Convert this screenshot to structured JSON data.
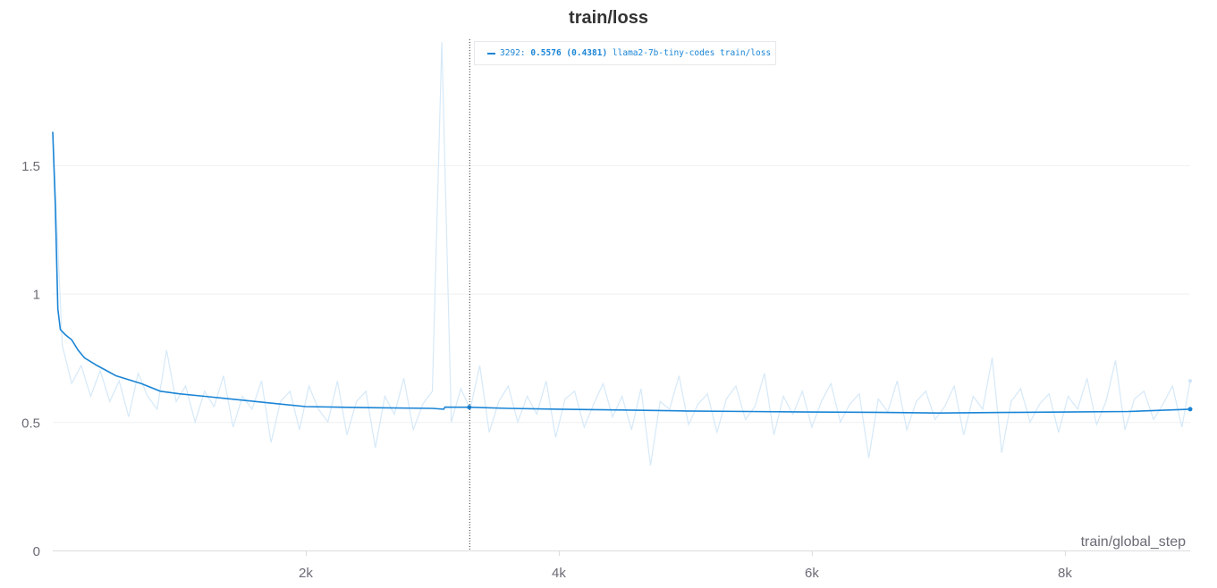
{
  "chart_data": {
    "type": "line",
    "title": "train/loss",
    "xlabel": "train/global_step",
    "ylabel": "",
    "xlim": [
      0,
      8990
    ],
    "ylim": [
      0,
      1.99
    ],
    "x_ticks": [
      {
        "value": 2000,
        "label": "2k"
      },
      {
        "value": 4000,
        "label": "4k"
      },
      {
        "value": 6000,
        "label": "6k"
      },
      {
        "value": 8000,
        "label": "8k"
      }
    ],
    "y_ticks": [
      {
        "value": 0,
        "label": "0"
      },
      {
        "value": 0.5,
        "label": "0.5"
      },
      {
        "value": 1,
        "label": "1"
      },
      {
        "value": 1.5,
        "label": "1.5"
      }
    ],
    "grid": true,
    "color": "#1b85d6",
    "raw_color": "#d6e9f8",
    "series": [
      {
        "name": "llama2-7b-tiny-codes train/loss",
        "smoothed": {
          "x": [
            0,
            20,
            40,
            60,
            100,
            150,
            200,
            250,
            350,
            500,
            700,
            850,
            1000,
            1200,
            1500,
            1800,
            2000,
            2500,
            3000,
            3090,
            3100,
            3292,
            3600,
            4000,
            4500,
            5000,
            5500,
            6000,
            6500,
            7000,
            7500,
            8000,
            8500,
            8990
          ],
          "y": [
            1.63,
            1.35,
            0.94,
            0.86,
            0.84,
            0.82,
            0.78,
            0.75,
            0.72,
            0.68,
            0.65,
            0.62,
            0.61,
            0.6,
            0.585,
            0.57,
            0.56,
            0.556,
            0.553,
            0.55,
            0.558,
            0.5576,
            0.553,
            0.55,
            0.547,
            0.543,
            0.541,
            0.539,
            0.538,
            0.535,
            0.537,
            0.539,
            0.541,
            0.55
          ]
        },
        "raw": {
          "x": [
            0,
            75,
            150,
            225,
            300,
            375,
            450,
            525,
            600,
            675,
            750,
            825,
            900,
            975,
            1050,
            1125,
            1200,
            1275,
            1350,
            1425,
            1500,
            1575,
            1650,
            1725,
            1800,
            1875,
            1950,
            2025,
            2100,
            2175,
            2250,
            2325,
            2400,
            2475,
            2550,
            2625,
            2700,
            2775,
            2850,
            2925,
            3000,
            3075,
            3150,
            3225,
            3300,
            3375,
            3450,
            3525,
            3600,
            3675,
            3750,
            3825,
            3900,
            3975,
            4050,
            4125,
            4200,
            4275,
            4350,
            4425,
            4500,
            4575,
            4650,
            4725,
            4800,
            4875,
            4950,
            5025,
            5100,
            5175,
            5250,
            5325,
            5400,
            5475,
            5550,
            5625,
            5700,
            5775,
            5850,
            5925,
            6000,
            6075,
            6150,
            6225,
            6300,
            6375,
            6450,
            6525,
            6600,
            6675,
            6750,
            6825,
            6900,
            6975,
            7050,
            7125,
            7200,
            7275,
            7350,
            7425,
            7500,
            7575,
            7650,
            7725,
            7800,
            7875,
            7950,
            8025,
            8100,
            8175,
            8250,
            8325,
            8400,
            8475,
            8550,
            8625,
            8700,
            8775,
            8850,
            8925,
            8990
          ],
          "y": [
            1.63,
            0.8,
            0.65,
            0.72,
            0.6,
            0.7,
            0.58,
            0.66,
            0.52,
            0.69,
            0.6,
            0.55,
            0.78,
            0.58,
            0.64,
            0.5,
            0.62,
            0.56,
            0.68,
            0.48,
            0.6,
            0.55,
            0.66,
            0.42,
            0.58,
            0.62,
            0.47,
            0.64,
            0.55,
            0.5,
            0.66,
            0.45,
            0.58,
            0.62,
            0.4,
            0.6,
            0.53,
            0.67,
            0.47,
            0.57,
            0.62,
            1.98,
            0.5,
            0.63,
            0.55,
            0.72,
            0.46,
            0.58,
            0.64,
            0.5,
            0.6,
            0.53,
            0.66,
            0.44,
            0.59,
            0.62,
            0.48,
            0.57,
            0.65,
            0.52,
            0.6,
            0.47,
            0.63,
            0.33,
            0.58,
            0.55,
            0.68,
            0.49,
            0.57,
            0.61,
            0.46,
            0.59,
            0.64,
            0.51,
            0.56,
            0.69,
            0.45,
            0.6,
            0.53,
            0.62,
            0.48,
            0.58,
            0.65,
            0.5,
            0.57,
            0.61,
            0.36,
            0.59,
            0.54,
            0.66,
            0.47,
            0.58,
            0.62,
            0.51,
            0.56,
            0.64,
            0.45,
            0.6,
            0.55,
            0.75,
            0.38,
            0.58,
            0.63,
            0.5,
            0.57,
            0.61,
            0.46,
            0.6,
            0.55,
            0.67,
            0.49,
            0.58,
            0.74,
            0.47,
            0.59,
            0.62,
            0.51,
            0.57,
            0.64,
            0.48,
            0.66
          ]
        }
      }
    ],
    "hover": {
      "step": 3292,
      "step_label": "3292:",
      "value": "0.5576",
      "raw_value": "(0.4381)",
      "series_label": "llama2-7b-tiny-codes train/loss"
    }
  }
}
